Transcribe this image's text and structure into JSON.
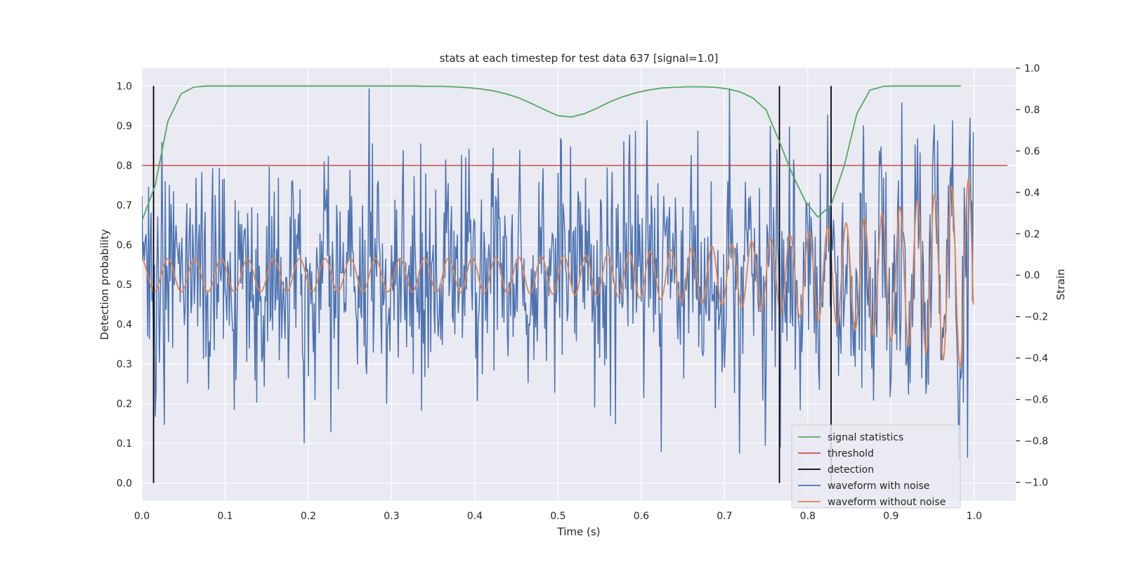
{
  "chart_data": {
    "type": "line",
    "title": "stats at each timestep for test data 637 [signal=1.0]",
    "xlabel": "Time (s)",
    "ylabel_left": "Detection probability",
    "ylabel_right": "Strain",
    "xlim": [
      0.0,
      1.05
    ],
    "ylim_left": [
      -0.045,
      1.045
    ],
    "ylim_right": [
      -1.09,
      1.0
    ],
    "xticks": [
      0.0,
      0.1,
      0.2,
      0.3,
      0.4,
      0.5,
      0.6,
      0.7,
      0.8,
      0.9,
      1.0
    ],
    "xtick_labels": [
      "0.0",
      "0.1",
      "0.2",
      "0.3",
      "0.4",
      "0.5",
      "0.6",
      "0.7",
      "0.8",
      "0.9",
      "1.0"
    ],
    "yticks_left": [
      0.0,
      0.1,
      0.2,
      0.3,
      0.4,
      0.5,
      0.6,
      0.7,
      0.8,
      0.9,
      1.0
    ],
    "ytick_labels_left": [
      "0.0",
      "0.1",
      "0.2",
      "0.3",
      "0.4",
      "0.5",
      "0.6",
      "0.7",
      "0.8",
      "0.9",
      "1.0"
    ],
    "yticks_right": [
      -1.0,
      -0.8,
      -0.6,
      -0.4,
      -0.2,
      0.0,
      0.2,
      0.4,
      0.6,
      0.8,
      1.0
    ],
    "ytick_labels_right": [
      "−1.0",
      "−0.8",
      "−0.6",
      "−0.4",
      "−0.2",
      "0.0",
      "0.2",
      "0.4",
      "0.6",
      "0.8",
      "1.0"
    ],
    "grid": true,
    "legend_position": "lower-right",
    "colors": {
      "background": "#eaeaf2",
      "grid": "#ffffff",
      "signal_statistics": "#55a868",
      "threshold": "#c44e52",
      "detection": "#000000",
      "waveform_with_noise": "#4c72b0",
      "waveform_without_noise": "#dd8452"
    },
    "legend": [
      {
        "key": "signal_statistics",
        "label": "signal statistics"
      },
      {
        "key": "threshold",
        "label": "threshold"
      },
      {
        "key": "detection",
        "label": "detection"
      },
      {
        "key": "waveform_with_noise",
        "label": "waveform with noise"
      },
      {
        "key": "waveform_without_noise",
        "label": "waveform without noise"
      }
    ],
    "threshold": {
      "y": 0.8,
      "x": [
        0.0,
        1.04
      ]
    },
    "detections": [
      {
        "x": 0.014,
        "y": [
          0.0,
          1.0
        ]
      },
      {
        "x": 0.766,
        "y": [
          0.0,
          1.0
        ]
      },
      {
        "x": 0.828,
        "y": [
          0.0,
          1.0
        ]
      }
    ],
    "signal_statistics": {
      "axis": "left",
      "x": [
        0.0,
        0.016,
        0.031,
        0.047,
        0.062,
        0.078,
        0.094,
        0.109,
        0.125,
        0.141,
        0.156,
        0.172,
        0.188,
        0.203,
        0.219,
        0.234,
        0.25,
        0.266,
        0.281,
        0.297,
        0.312,
        0.328,
        0.344,
        0.359,
        0.375,
        0.391,
        0.406,
        0.422,
        0.438,
        0.453,
        0.469,
        0.484,
        0.5,
        0.516,
        0.531,
        0.547,
        0.562,
        0.578,
        0.594,
        0.609,
        0.625,
        0.641,
        0.656,
        0.672,
        0.688,
        0.703,
        0.719,
        0.734,
        0.75,
        0.766,
        0.781,
        0.797,
        0.812,
        0.828,
        0.844,
        0.859,
        0.875,
        0.891,
        0.906,
        0.922,
        0.938,
        0.953,
        0.969,
        0.984
      ],
      "y": [
        0.66,
        0.75,
        0.91,
        0.98,
        0.997,
        1.0,
        1.0,
        1.0,
        1.0,
        1.0,
        1.0,
        1.0,
        1.0,
        1.0,
        1.0,
        1.0,
        1.0,
        1.0,
        1.0,
        1.0,
        1.0,
        1.0,
        0.999,
        0.999,
        0.998,
        0.996,
        0.993,
        0.988,
        0.98,
        0.97,
        0.955,
        0.94,
        0.925,
        0.922,
        0.93,
        0.944,
        0.96,
        0.973,
        0.983,
        0.99,
        0.995,
        0.997,
        0.998,
        0.998,
        0.997,
        0.993,
        0.985,
        0.97,
        0.94,
        0.86,
        0.78,
        0.71,
        0.67,
        0.7,
        0.8,
        0.93,
        0.99,
        0.999,
        1.0,
        1.0,
        1.0,
        1.0,
        1.0,
        1.0
      ]
    },
    "waveform_with_noise": {
      "axis": "right",
      "sample_rate_hz": 1000,
      "x_range": [
        0.0,
        0.999
      ],
      "y_range": [
        -0.97,
        0.9
      ],
      "peaks": [
        {
          "x": 0.273,
          "y": 0.9
        },
        {
          "x": 0.195,
          "y": -0.81
        },
        {
          "x": 0.718,
          "y": -0.86
        },
        {
          "x": 0.992,
          "y": -0.88
        },
        {
          "x": 0.999,
          "y": 0.69
        }
      ]
    },
    "waveform_without_noise": {
      "axis": "right",
      "x_range": [
        0.0,
        0.999
      ],
      "start_frequency_hz": 31,
      "end_frequency_hz": 50,
      "start_amplitude": 0.08,
      "end_amplitude": 0.48
    }
  }
}
